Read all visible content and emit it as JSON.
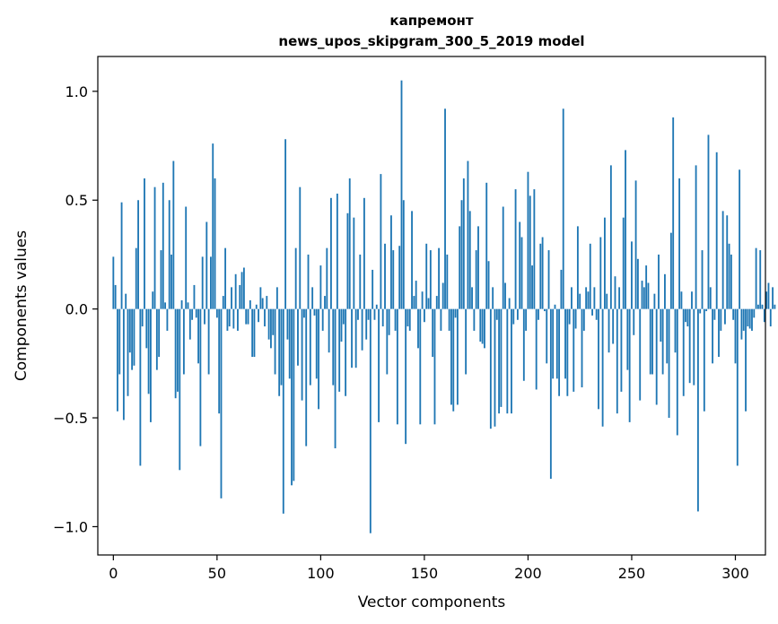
{
  "chart_data": {
    "type": "bar",
    "title": "капремонт",
    "subtitle": "news_upos_skipgram_300_5_2019 model",
    "xlabel": "Vector components",
    "ylabel": "Components values",
    "xlim": [
      -7.5,
      314.5
    ],
    "ylim": [
      -1.13,
      1.16
    ],
    "x_ticks": [
      {
        "value": 0,
        "label": "0"
      },
      {
        "value": 50,
        "label": "50"
      },
      {
        "value": 100,
        "label": "100"
      },
      {
        "value": 150,
        "label": "150"
      },
      {
        "value": 200,
        "label": "200"
      },
      {
        "value": 250,
        "label": "250"
      },
      {
        "value": 300,
        "label": "300"
      }
    ],
    "y_ticks": [
      {
        "value": -1.0,
        "label": "−1.0"
      },
      {
        "value": -0.5,
        "label": "−0.5"
      },
      {
        "value": 0.0,
        "label": "0.0"
      },
      {
        "value": 0.5,
        "label": "0.5"
      },
      {
        "value": 1.0,
        "label": "1.0"
      }
    ],
    "grid": false,
    "bar_color": "#1f77b4",
    "series": [
      {
        "values": [
          0.24,
          0.11,
          -0.47,
          -0.3,
          0.49,
          -0.51,
          0.07,
          -0.4,
          -0.2,
          -0.28,
          -0.26,
          0.28,
          0.5,
          -0.72,
          -0.08,
          0.6,
          -0.18,
          -0.39,
          -0.52,
          0.08,
          0.56,
          -0.28,
          -0.22,
          0.27,
          0.58,
          0.03,
          -0.1,
          0.5,
          0.25,
          0.68,
          -0.41,
          -0.38,
          -0.74,
          0.04,
          -0.3,
          0.47,
          0.03,
          -0.14,
          -0.05,
          0.11,
          -0.04,
          -0.25,
          -0.63,
          0.24,
          -0.07,
          0.4,
          -0.3,
          0.24,
          0.76,
          0.6,
          -0.04,
          -0.48,
          -0.87,
          0.06,
          0.28,
          -0.1,
          -0.08,
          0.1,
          -0.09,
          0.16,
          -0.1,
          0.11,
          0.17,
          0.19,
          -0.07,
          -0.07,
          0.04,
          -0.22,
          -0.22,
          0.02,
          -0.06,
          0.1,
          0.05,
          -0.08,
          0.06,
          -0.14,
          -0.18,
          -0.12,
          -0.3,
          0.1,
          -0.4,
          -0.35,
          -0.94,
          0.78,
          -0.14,
          -0.32,
          -0.81,
          -0.79,
          0.28,
          -0.26,
          0.56,
          -0.42,
          -0.04,
          -0.63,
          0.25,
          -0.35,
          0.1,
          -0.03,
          -0.32,
          -0.46,
          0.2,
          -0.1,
          0.06,
          0.28,
          -0.2,
          0.51,
          -0.35,
          -0.64,
          0.53,
          -0.38,
          -0.15,
          -0.07,
          -0.4,
          0.44,
          0.6,
          -0.27,
          0.42,
          -0.27,
          -0.05,
          0.25,
          -0.19,
          0.51,
          -0.14,
          -0.05,
          -1.03,
          0.18,
          -0.05,
          0.02,
          -0.52,
          0.62,
          -0.08,
          0.3,
          -0.3,
          -0.12,
          0.43,
          0.27,
          -0.1,
          -0.53,
          0.29,
          1.05,
          0.5,
          -0.62,
          -0.08,
          -0.1,
          0.45,
          0.06,
          0.13,
          -0.18,
          -0.53,
          0.08,
          -0.06,
          0.3,
          0.05,
          0.27,
          -0.22,
          -0.53,
          0.06,
          0.28,
          -0.1,
          0.12,
          0.92,
          0.25,
          -0.1,
          -0.44,
          -0.47,
          -0.04,
          -0.44,
          0.38,
          0.5,
          0.6,
          -0.3,
          0.68,
          0.45,
          0.1,
          -0.1,
          0.27,
          0.38,
          -0.15,
          -0.16,
          -0.18,
          0.58,
          0.22,
          -0.55,
          0.1,
          -0.54,
          -0.05,
          -0.48,
          -0.45,
          0.47,
          0.12,
          -0.48,
          0.05,
          -0.48,
          -0.07,
          0.55,
          -0.05,
          0.4,
          0.33,
          -0.33,
          -0.1,
          0.63,
          0.52,
          0.2,
          0.55,
          -0.37,
          -0.05,
          0.3,
          0.33,
          -0.01,
          -0.25,
          0.27,
          -0.78,
          -0.32,
          0.02,
          -0.32,
          -0.4,
          0.18,
          0.92,
          -0.32,
          -0.4,
          -0.07,
          0.1,
          -0.38,
          -0.09,
          0.38,
          0.07,
          -0.36,
          -0.1,
          0.1,
          0.08,
          0.3,
          -0.03,
          0.1,
          -0.05,
          -0.46,
          0.33,
          -0.54,
          0.42,
          0.07,
          -0.2,
          0.66,
          -0.16,
          0.15,
          -0.48,
          0.1,
          -0.38,
          0.42,
          0.73,
          -0.28,
          -0.52,
          0.31,
          -0.12,
          0.59,
          0.23,
          -0.42,
          0.13,
          0.1,
          0.2,
          0.12,
          -0.3,
          -0.3,
          0.07,
          -0.44,
          0.25,
          -0.15,
          -0.3,
          0.16,
          -0.25,
          -0.5,
          0.35,
          0.88,
          -0.2,
          -0.58,
          0.6,
          0.08,
          -0.4,
          -0.06,
          -0.08,
          -0.34,
          0.08,
          -0.35,
          0.66,
          -0.93,
          -0.02,
          0.27,
          -0.47,
          -0.01,
          0.8,
          0.1,
          -0.25,
          -0.05,
          0.72,
          -0.22,
          -0.1,
          0.45,
          -0.07,
          0.43,
          0.3,
          0.25,
          -0.05,
          -0.25,
          -0.72,
          0.64,
          -0.14,
          -0.1,
          -0.47,
          -0.08,
          -0.09,
          -0.1,
          -0.04,
          0.28,
          0.02,
          0.27,
          0.02,
          -0.06,
          0.08,
          0.12,
          -0.08,
          0.1,
          0.02
        ]
      }
    ]
  }
}
